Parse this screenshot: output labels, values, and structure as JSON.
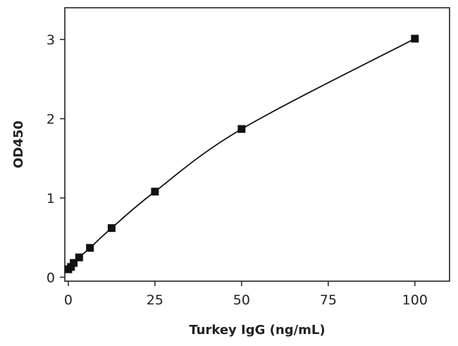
{
  "chart_data": {
    "type": "scatter",
    "title": "",
    "xlabel": "Turkey IgG (ng/mL)",
    "ylabel": "OD450",
    "xlim": [
      -1,
      110
    ],
    "ylim": [
      -0.05,
      3.4
    ],
    "xticks": [
      0,
      25,
      50,
      75,
      100
    ],
    "yticks": [
      0,
      1,
      2,
      3
    ],
    "grid": false,
    "legend": "none",
    "marker": "square",
    "fit_line": true,
    "color": "#111111",
    "series": [
      {
        "x": [
          0,
          0.78,
          1.56,
          3.13,
          6.25,
          12.5,
          25,
          50,
          100
        ],
        "y": [
          0.1,
          0.13,
          0.18,
          0.25,
          0.37,
          0.62,
          1.08,
          1.87,
          3.01
        ]
      }
    ]
  }
}
